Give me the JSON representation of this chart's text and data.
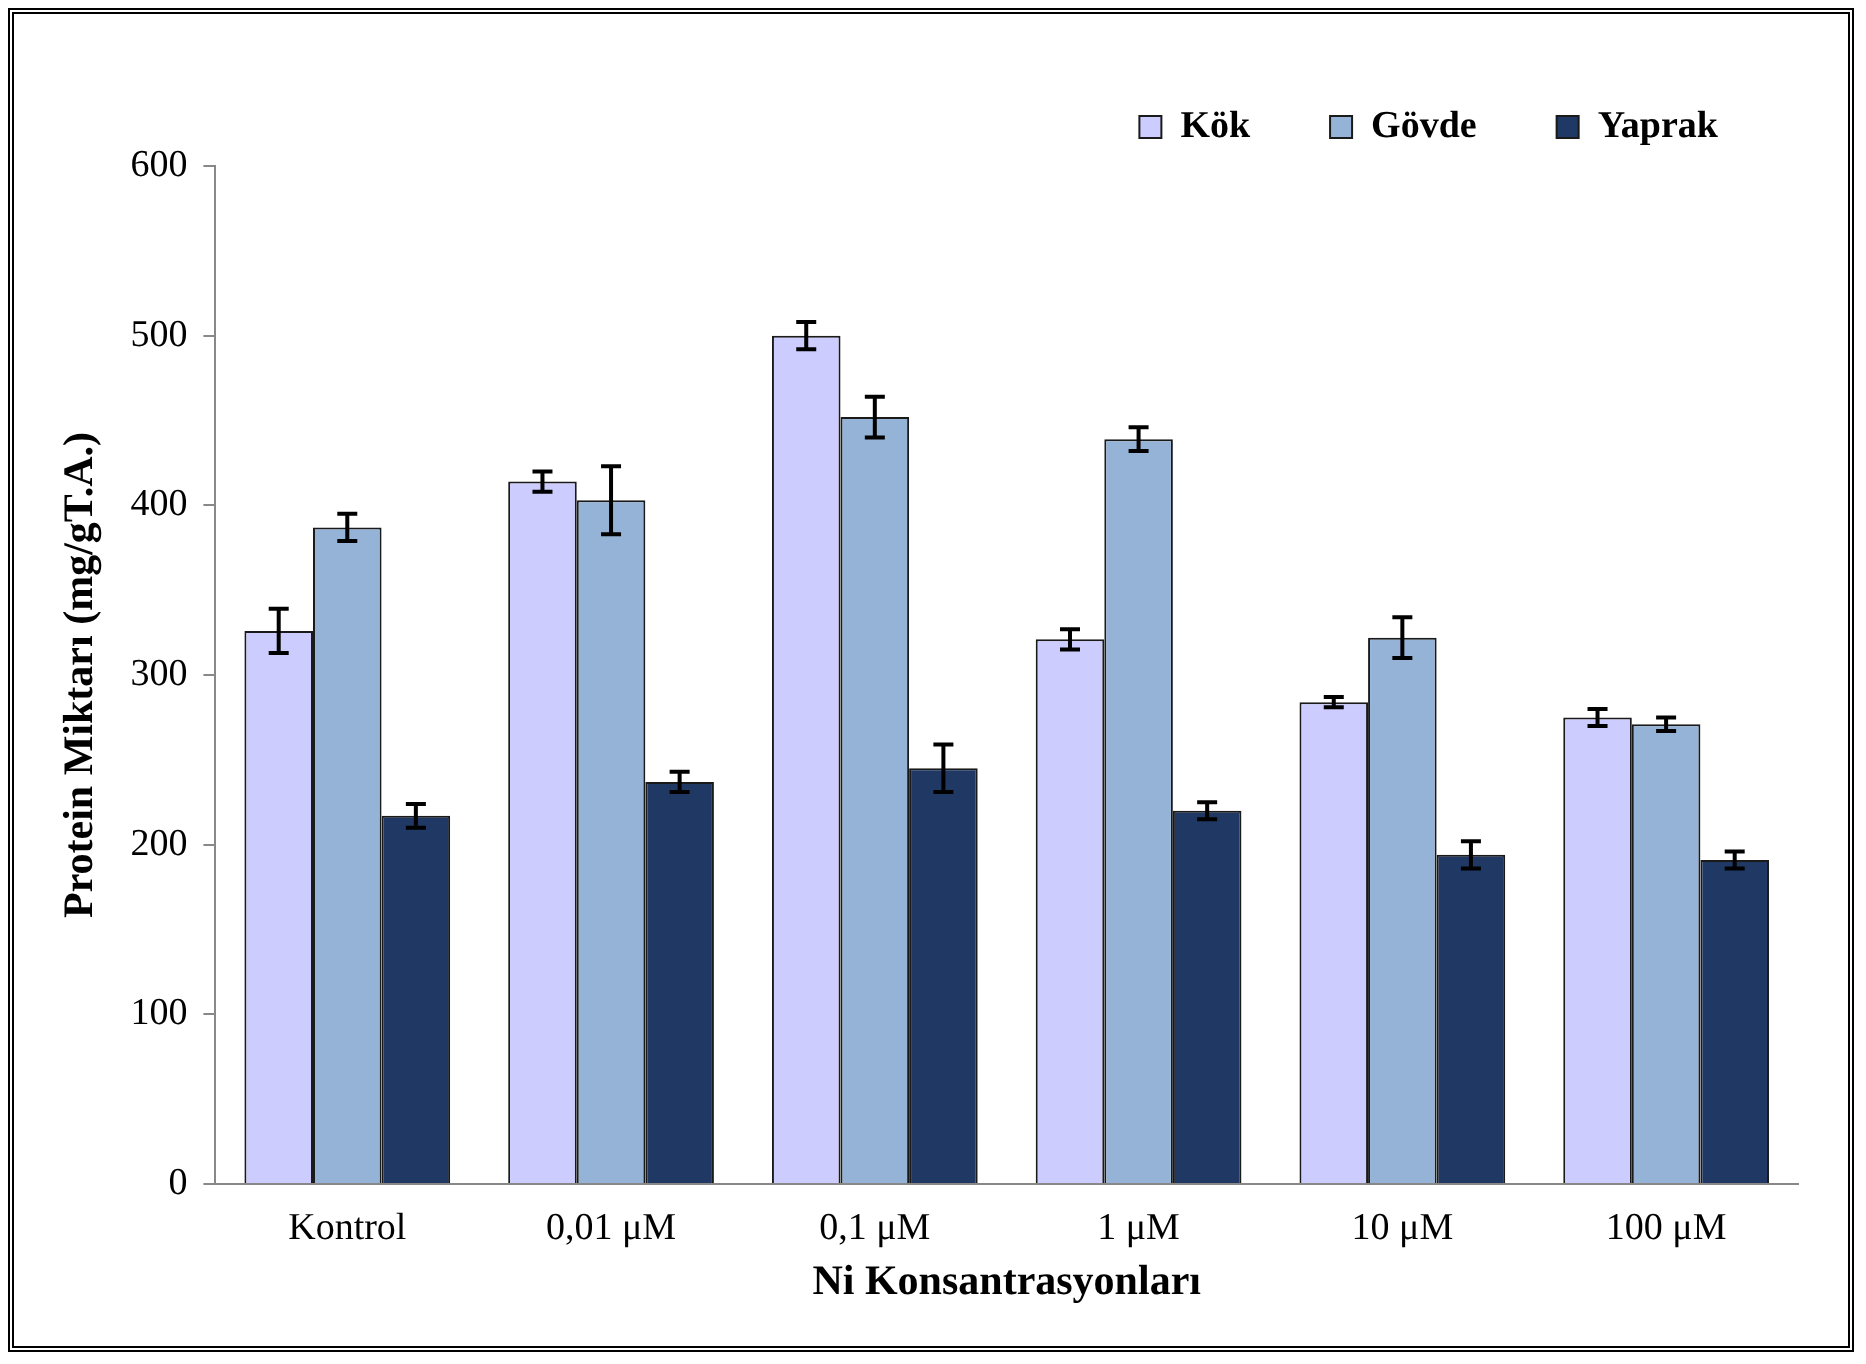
{
  "chart_data": {
    "type": "bar",
    "xlabel": "Ni Konsantrasyonları",
    "ylabel": "Protein Miktarı (mg/gT.A.)",
    "categories": [
      "Kontrol",
      "0,01 μM",
      "0,1 μM",
      "1 μM",
      "10 μM",
      "100 μM"
    ],
    "series": [
      {
        "name": "Kök",
        "color": "#ccccff",
        "values": [
          326,
          414,
          500,
          321,
          284,
          275
        ],
        "errors": [
          13,
          6,
          8,
          6,
          3,
          5
        ]
      },
      {
        "name": "Gövde",
        "color": "#95b3d7",
        "values": [
          387,
          403,
          452,
          439,
          322,
          271
        ],
        "errors": [
          8,
          20,
          12,
          7,
          12,
          4
        ]
      },
      {
        "name": "Yaprak",
        "color": "#1f3864",
        "values": [
          217,
          237,
          245,
          220,
          194,
          191
        ],
        "errors": [
          7,
          6,
          14,
          5,
          8,
          5
        ]
      }
    ],
    "ylim": [
      0,
      600
    ],
    "yticks": [
      0,
      100,
      200,
      300,
      400,
      500,
      600
    ],
    "grid": false,
    "legend": "top"
  }
}
